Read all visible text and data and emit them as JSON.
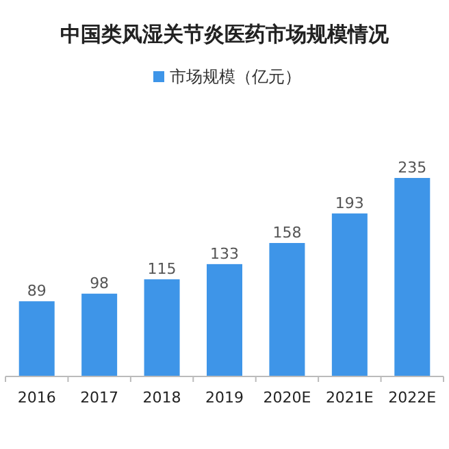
{
  "chart_data": {
    "type": "bar",
    "title": "中国类风湿关节炎医药市场规模情况",
    "categories": [
      "2016",
      "2017",
      "2018",
      "2019",
      "2020E",
      "2021E",
      "2022E"
    ],
    "series": [
      {
        "name": "市场规模（亿元）",
        "color": "#3e95e8",
        "values": [
          89,
          98,
          115,
          133,
          158,
          193,
          235
        ]
      }
    ],
    "data_labels": true,
    "legend": "top"
  }
}
